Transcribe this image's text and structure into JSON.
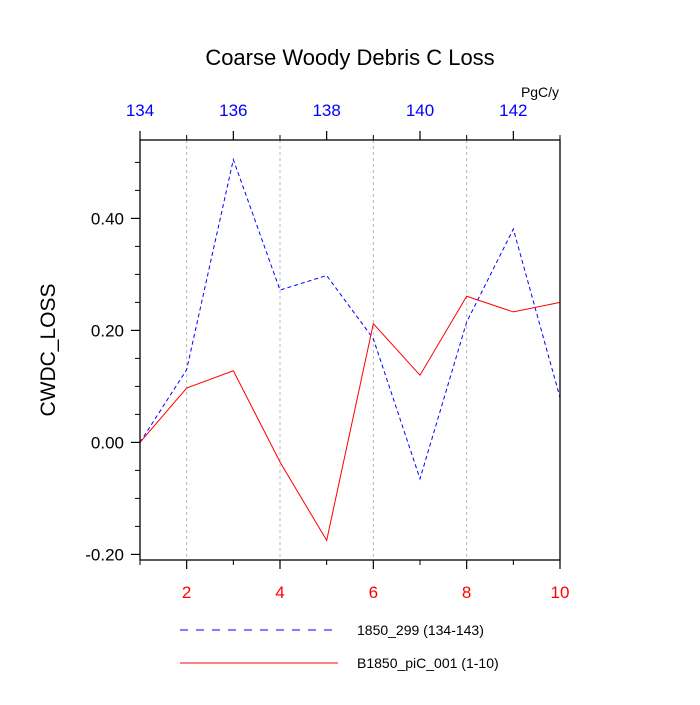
{
  "chart_data": {
    "type": "line",
    "title": "Coarse Woody Debris C Loss",
    "units": "PgC/y",
    "ylabel": "CWDC_LOSS",
    "ylim": [
      -0.21,
      0.54
    ],
    "yticks": [
      -0.2,
      0.0,
      0.2,
      0.4
    ],
    "ytick_labels": [
      "-0.20",
      "0.00",
      "0.20",
      "0.40"
    ],
    "bottom_axis": {
      "range": [
        1,
        10
      ],
      "ticks": [
        2,
        4,
        6,
        8,
        10
      ],
      "tick_labels": [
        "2",
        "4",
        "6",
        "8",
        "10"
      ],
      "color": "#ff0000"
    },
    "top_axis": {
      "range": [
        134,
        143
      ],
      "ticks": [
        134,
        136,
        138,
        140,
        142
      ],
      "tick_labels": [
        "134",
        "136",
        "138",
        "140",
        "142"
      ],
      "color": "#0000ff"
    },
    "grid": "vertical dotted",
    "series": [
      {
        "name": "1850_299 (134-143)",
        "axis": "top",
        "color": "#0000ff",
        "style": "dashed",
        "x": [
          134,
          135,
          136,
          137,
          138,
          139,
          140,
          141,
          142,
          143
        ],
        "values": [
          0.0,
          0.13,
          0.505,
          0.272,
          0.298,
          0.185,
          -0.065,
          0.215,
          0.381,
          0.08
        ]
      },
      {
        "name": "B1850_piC_001 (1-10)",
        "axis": "bottom",
        "color": "#ff0000",
        "style": "solid",
        "x": [
          1,
          2,
          3,
          4,
          5,
          6,
          7,
          8,
          9,
          10
        ],
        "values": [
          0.0,
          0.097,
          0.128,
          -0.035,
          -0.175,
          0.212,
          0.12,
          0.261,
          0.233,
          0.25
        ]
      }
    ]
  }
}
